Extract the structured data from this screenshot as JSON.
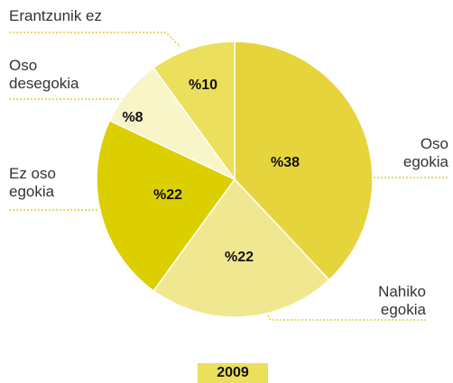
{
  "chart_data": {
    "type": "pie",
    "categories": [
      "Oso egokia",
      "Nahiko egokia",
      "Ez oso egokia",
      "Oso desegokia",
      "Erantzunik ez"
    ],
    "values": [
      38,
      22,
      22,
      8,
      10
    ],
    "value_labels": [
      "%38",
      "%22",
      "%22",
      "%8",
      "%10"
    ],
    "colors": [
      "#e6d43c",
      "#f0e890",
      "#dccf00",
      "#f8f5c9",
      "#ebdf5c"
    ],
    "caption": "2009"
  }
}
